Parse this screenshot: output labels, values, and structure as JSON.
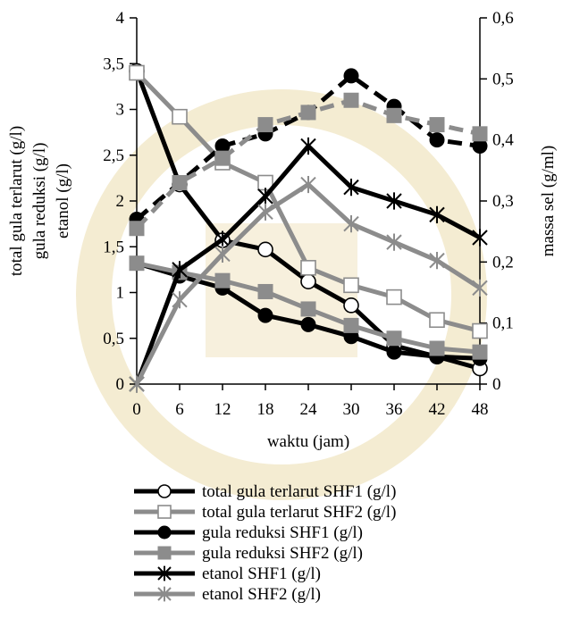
{
  "chart_data": {
    "type": "line",
    "x": [
      0,
      6,
      12,
      18,
      24,
      30,
      36,
      42,
      48
    ],
    "xlabel": "waktu (jam)",
    "ylabel_left": [
      "total gula terlarut (g/l)",
      "gula reduksi (g/l)",
      "etanol (g/l)"
    ],
    "ylabel_right": "massa sel (g/ml)",
    "ylim_left": [
      0,
      4
    ],
    "ylim_right": [
      0,
      0.6
    ],
    "x_ticks": [
      "0",
      "6",
      "12",
      "18",
      "24",
      "30",
      "36",
      "42",
      "48"
    ],
    "y_left_ticks": [
      "0",
      "0,5",
      "1",
      "1,5",
      "2",
      "2,5",
      "3",
      "3,5",
      "4"
    ],
    "y_right_ticks": [
      "0",
      "0,1",
      "0,2",
      "0,3",
      "0,4",
      "0,5",
      "0,6"
    ],
    "grid": false,
    "legend_position": "bottom",
    "series": [
      {
        "name": "total gula terlarut SHF1 (g/l)",
        "axis": "left",
        "values": [
          3.42,
          2.18,
          1.57,
          1.47,
          1.12,
          0.86,
          0.42,
          0.3,
          0.17
        ],
        "marker": "open-circle",
        "color": "#000000"
      },
      {
        "name": "total gula terlarut SHF2 (g/l)",
        "axis": "left",
        "values": [
          3.4,
          2.92,
          2.42,
          2.2,
          1.27,
          1.08,
          0.95,
          0.7,
          0.58
        ],
        "marker": "open-square",
        "color": "#8c8c8c"
      },
      {
        "name": "gula reduksi SHF1 (g/l)",
        "axis": "left",
        "values": [
          1.32,
          1.18,
          1.05,
          0.75,
          0.65,
          0.52,
          0.35,
          0.3,
          0.28
        ],
        "marker": "filled-circle",
        "color": "#000000"
      },
      {
        "name": "gula reduksi SHF2 (g/l)",
        "axis": "left",
        "values": [
          1.32,
          1.22,
          1.13,
          1.01,
          0.82,
          0.64,
          0.5,
          0.39,
          0.35
        ],
        "marker": "filled-square",
        "color": "#8c8c8c"
      },
      {
        "name": "etanol SHF1 (g/l)",
        "axis": "left",
        "values": [
          0,
          1.25,
          1.58,
          2.05,
          2.6,
          2.15,
          2.0,
          1.85,
          1.6
        ],
        "marker": "star",
        "color": "#000000"
      },
      {
        "name": "etanol SHF2 (g/l)",
        "axis": "left",
        "values": [
          0,
          0.92,
          1.42,
          1.88,
          2.18,
          1.75,
          1.55,
          1.35,
          1.05
        ],
        "marker": "star",
        "color": "#8c8c8c"
      },
      {
        "axis": "right",
        "values": [
          0.27,
          0.33,
          0.39,
          0.41,
          0.445,
          0.505,
          0.455,
          0.4,
          0.39
        ],
        "marker": "filled-circle",
        "line": "dashed",
        "color": "#000000",
        "in_legend": false
      },
      {
        "axis": "right",
        "values": [
          0.255,
          0.33,
          0.37,
          0.425,
          0.445,
          0.465,
          0.44,
          0.425,
          0.41
        ],
        "marker": "filled-square",
        "line": "dashed",
        "color": "#8c8c8c",
        "in_legend": false
      }
    ]
  }
}
